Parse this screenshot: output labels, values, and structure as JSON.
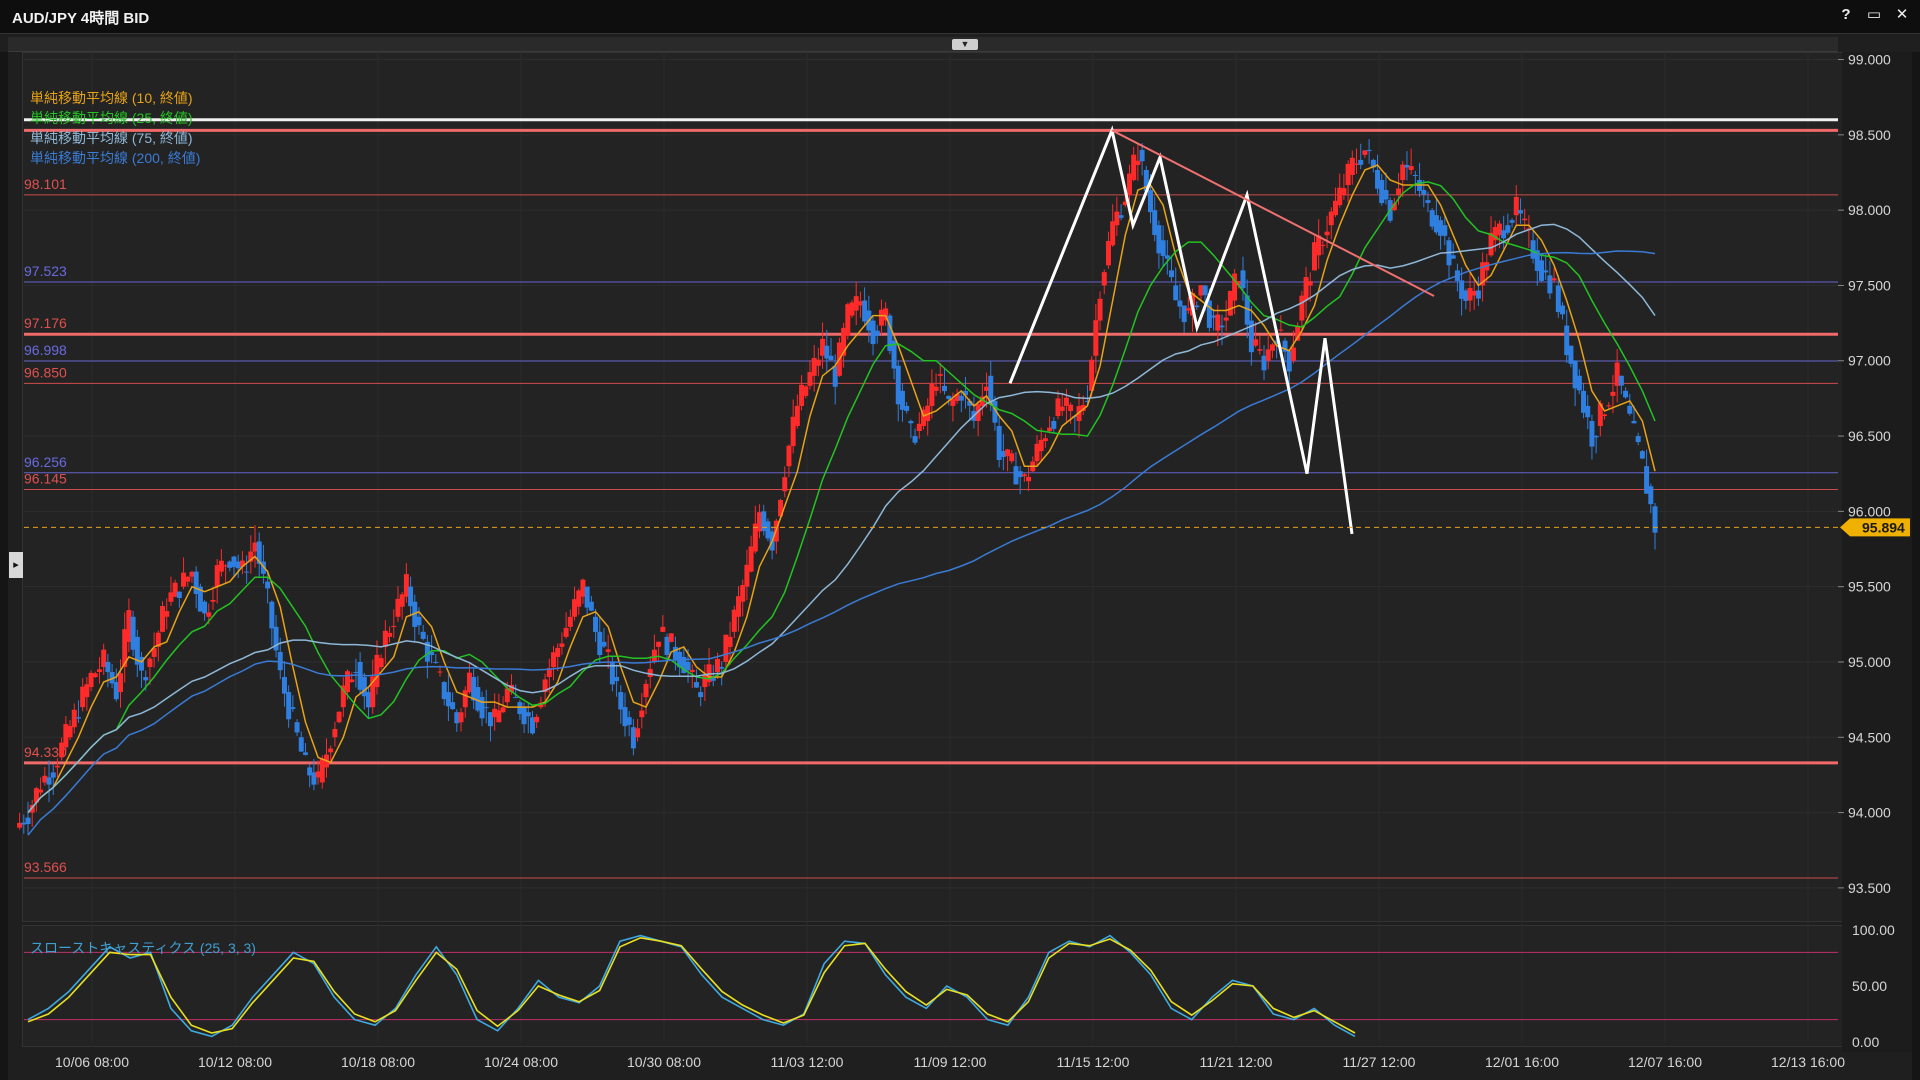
{
  "window": {
    "title": "AUD/JPY 4時間 BID",
    "buttons": [
      {
        "name": "help-button",
        "label": "?"
      },
      {
        "name": "maximize-button",
        "label": "▭"
      },
      {
        "name": "close-button",
        "label": "✕"
      }
    ]
  },
  "legend": [
    {
      "label": "単純移動平均線 (10, 終値)",
      "color": "#e8a317"
    },
    {
      "label": "単純移動平均線 (25, 終値)",
      "color": "#22c322"
    },
    {
      "label": "単純移動平均線 (75, 終値)",
      "color": "#8fb8d8"
    },
    {
      "label": "単純移動平均線 (200, 終値)",
      "color": "#3a7bd5"
    }
  ],
  "stoch_legend": "スローストキャスティクス (25, 3, 3)",
  "chart_data": [
    {
      "type": "candlestick",
      "title": "AUD/JPY 4時間 BID",
      "ylim": [
        93.3,
        99.05
      ],
      "y_ticks": [
        "99.000",
        "98.500",
        "98.000",
        "97.500",
        "97.000",
        "96.500",
        "96.000",
        "95.500",
        "95.000",
        "94.500",
        "94.000",
        "93.500"
      ],
      "x_ticks": [
        "10/06 08:00",
        "10/12 08:00",
        "10/18 08:00",
        "10/24 08:00",
        "10/30 08:00",
        "11/03 12:00",
        "11/09 12:00",
        "11/15 12:00",
        "11/21 12:00",
        "11/27 12:00",
        "12/01 16:00",
        "12/07 16:00",
        "12/13 16:00"
      ],
      "current_price": "95.894",
      "horizontal_levels": [
        {
          "label": "98.101",
          "value": 98.101,
          "color": "#e05050"
        },
        {
          "label": "97.523",
          "value": 97.523,
          "color": "#6a6ae0"
        },
        {
          "label": "97.176",
          "value": 97.176,
          "color": "#e05050"
        },
        {
          "label": "96.998",
          "value": 96.998,
          "color": "#6a6ae0"
        },
        {
          "label": "96.850",
          "value": 96.85,
          "color": "#e05050"
        },
        {
          "label": "96.256",
          "value": 96.256,
          "color": "#6a6ae0"
        },
        {
          "label": "96.145",
          "value": 96.145,
          "color": "#e05050"
        },
        {
          "label": "94.330",
          "value": 94.33,
          "color": "#e05050"
        },
        {
          "label": "93.566",
          "value": 93.566,
          "color": "#e05050"
        }
      ],
      "close_path": [
        94.0,
        94.2,
        94.3,
        94.5,
        94.7,
        94.9,
        95.0,
        94.8,
        95.3,
        94.9,
        95.1,
        95.4,
        95.5,
        95.6,
        95.3,
        95.6,
        95.7,
        95.6,
        95.8,
        95.4,
        94.9,
        94.6,
        94.3,
        94.2,
        94.5,
        94.8,
        95.0,
        94.7,
        95.1,
        95.3,
        95.5,
        95.2,
        95.0,
        94.8,
        94.6,
        94.9,
        94.7,
        94.6,
        94.8,
        94.7,
        94.6,
        94.9,
        95.1,
        95.3,
        95.5,
        95.2,
        95.0,
        94.7,
        94.5,
        94.9,
        95.2,
        95.1,
        95.0,
        94.8,
        94.9,
        95.0,
        95.3,
        95.6,
        96.0,
        95.8,
        96.3,
        96.7,
        96.9,
        97.1,
        96.9,
        97.3,
        97.4,
        97.2,
        97.3,
        96.8,
        96.5,
        96.6,
        96.9,
        96.7,
        96.8,
        96.6,
        96.9,
        96.4,
        96.3,
        96.2,
        96.4,
        96.6,
        96.7,
        96.6,
        96.8,
        97.5,
        97.9,
        98.1,
        98.4,
        98.0,
        97.7,
        97.4,
        97.3,
        97.5,
        97.2,
        97.3,
        97.6,
        97.1,
        97.0,
        97.2,
        97.0,
        97.4,
        97.7,
        97.9,
        98.1,
        98.3,
        98.4,
        98.2,
        98.0,
        98.3,
        98.2,
        98.0,
        97.9,
        97.6,
        97.4,
        97.5,
        97.8,
        97.9,
        98.0,
        97.8,
        97.6,
        97.5,
        97.1,
        96.8,
        96.5,
        96.7,
        96.9,
        96.6,
        96.3,
        95.9
      ]
    },
    {
      "type": "line",
      "title": "スローストキャスティクス (25, 3, 3)",
      "ylim": [
        0,
        100
      ],
      "y_ticks": [
        "100.00",
        "50.00",
        "0.00"
      ],
      "series": [
        {
          "name": "%K",
          "color": "#3fa9e0",
          "values": [
            20,
            30,
            45,
            65,
            85,
            75,
            80,
            30,
            10,
            5,
            15,
            40,
            60,
            80,
            70,
            40,
            20,
            15,
            30,
            60,
            85,
            60,
            20,
            10,
            30,
            55,
            40,
            35,
            50,
            90,
            95,
            90,
            85,
            60,
            40,
            30,
            20,
            15,
            25,
            70,
            90,
            88,
            60,
            40,
            30,
            50,
            40,
            20,
            15,
            40,
            80,
            90,
            85,
            95,
            80,
            60,
            30,
            20,
            40,
            55,
            50,
            25,
            20,
            30,
            15,
            5
          ]
        },
        {
          "name": "%D",
          "color": "#e8e020",
          "values": [
            18,
            25,
            40,
            60,
            80,
            78,
            78,
            40,
            15,
            8,
            12,
            35,
            55,
            75,
            72,
            45,
            25,
            18,
            28,
            55,
            80,
            65,
            28,
            14,
            28,
            50,
            42,
            36,
            46,
            85,
            93,
            90,
            86,
            65,
            45,
            33,
            24,
            17,
            24,
            62,
            86,
            88,
            65,
            45,
            33,
            47,
            42,
            25,
            18,
            36,
            75,
            88,
            86,
            92,
            82,
            64,
            36,
            24,
            37,
            52,
            50,
            30,
            22,
            28,
            18,
            8
          ]
        }
      ],
      "levels": [
        80,
        20
      ]
    }
  ]
}
